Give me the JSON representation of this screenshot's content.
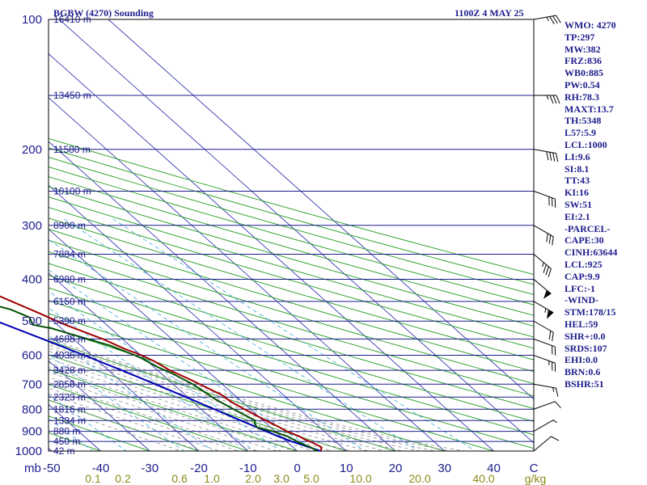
{
  "header": {
    "station": "BGBW (4270) Sounding",
    "time": "1100Z  4 MAY 25"
  },
  "axis": {
    "pressure_unit": "mb",
    "mixing_unit": "g/kg",
    "pressure_labels": [
      "100",
      "200",
      "300",
      "400",
      "500",
      "600",
      "700",
      "800",
      "900",
      "1000"
    ],
    "temp_labels": [
      "-50",
      "-40",
      "-30",
      "-20",
      "-10",
      "0",
      "10",
      "20",
      "30",
      "40",
      "C"
    ],
    "mixing_labels": [
      "0.1",
      "0.2",
      "0.6",
      "1.0",
      "2.0",
      "3.0",
      "5.0",
      "10.0",
      "20.0",
      "40.0"
    ]
  },
  "indices": [
    "WMO: 4270",
    "TP:297",
    "MW:382",
    "FRZ:836",
    "WB0:885",
    "PW:0.54",
    "RH:78.3",
    "MAXT:13.7",
    "TH:5348",
    "L57:5.9",
    "LCL:1000",
    "LI:9.6",
    "SI:8.1",
    "TT:43",
    "KI:16",
    "SW:51",
    "EI:2.1",
    "-PARCEL-",
    "CAPE:30",
    "CINH:63644",
    "LCL:925",
    "CAP:9.9",
    "LFC:-1",
    "-WIND-",
    "STM:178/15",
    "HEL:59",
    "SHR+:0.0",
    "SRDS:107",
    "EHI:0.0",
    "BRN:0.6",
    "BSHR:51"
  ],
  "chart_data": {
    "type": "skew-t log-p sounding",
    "title": "BGBW (4270) Sounding",
    "subtitle": "1100Z  4 MAY 25",
    "pressure_axis": {
      "unit": "mb",
      "range": [
        100,
        1000
      ],
      "scale": "log",
      "ticks": [
        100,
        200,
        300,
        400,
        500,
        600,
        700,
        800,
        900,
        1000
      ]
    },
    "temperature_axis": {
      "unit": "C",
      "range": [
        -50,
        50
      ],
      "ticks": [
        -50,
        -40,
        -30,
        -20,
        -10,
        0,
        10,
        20,
        30,
        40
      ]
    },
    "mixing_ratio_axis": {
      "unit": "g/kg",
      "ticks": [
        0.1,
        0.2,
        0.6,
        1.0,
        2.0,
        3.0,
        5.0,
        10.0,
        20.0,
        40.0
      ]
    },
    "height_levels": [
      {
        "height_m": "16410 m",
        "p": 100
      },
      {
        "height_m": "13450 m",
        "p": 150
      },
      {
        "height_m": "11580 m",
        "p": 200
      },
      {
        "height_m": "10100 m",
        "p": 250
      },
      {
        "height_m": "8900 m",
        "p": 300
      },
      {
        "height_m": "7884 m",
        "p": 350
      },
      {
        "height_m": "6980 m",
        "p": 400
      },
      {
        "height_m": "6150 m",
        "p": 450
      },
      {
        "height_m": "5390 m",
        "p": 500
      },
      {
        "height_m": "4688 m",
        "p": 550
      },
      {
        "height_m": "4036 m",
        "p": 600
      },
      {
        "height_m": "3428 m",
        "p": 650
      },
      {
        "height_m": "2858 m",
        "p": 700
      },
      {
        "height_m": "2323 m",
        "p": 750
      },
      {
        "height_m": "1816 m",
        "p": 800
      },
      {
        "height_m": "1334 m",
        "p": 850
      },
      {
        "height_m": "880 m",
        "p": 900
      },
      {
        "height_m": "450 m",
        "p": 950
      },
      {
        "height_m": "42 m",
        "p": 1000
      }
    ],
    "temperature": [
      {
        "p": 1000,
        "t": 4.8
      },
      {
        "p": 980,
        "t": 5.8
      },
      {
        "p": 960,
        "t": 5.2
      },
      {
        "p": 940,
        "t": 4.2
      },
      {
        "p": 925,
        "t": 3.8
      },
      {
        "p": 900,
        "t": 2.4
      },
      {
        "p": 880,
        "t": 1.8
      },
      {
        "p": 850,
        "t": 0.6
      },
      {
        "p": 800,
        "t": -1.2
      },
      {
        "p": 770,
        "t": -2.2
      },
      {
        "p": 740,
        "t": -2.6
      },
      {
        "p": 700,
        "t": -4.6
      },
      {
        "p": 680,
        "t": -5.6
      },
      {
        "p": 650,
        "t": -7.5
      },
      {
        "p": 620,
        "t": -8.6
      },
      {
        "p": 600,
        "t": -9.8
      },
      {
        "p": 580,
        "t": -11.8
      },
      {
        "p": 550,
        "t": -14.0
      },
      {
        "p": 510,
        "t": -18.4
      },
      {
        "p": 500,
        "t": -19.3
      },
      {
        "p": 480,
        "t": -21.0
      },
      {
        "p": 450,
        "t": -24.0
      },
      {
        "p": 430,
        "t": -26.0
      },
      {
        "p": 400,
        "t": -28.6
      },
      {
        "p": 370,
        "t": -32.0
      },
      {
        "p": 350,
        "t": -34.5
      },
      {
        "p": 320,
        "t": -39.0
      },
      {
        "p": 300,
        "t": -42.5
      },
      {
        "p": 280,
        "t": -44.0
      },
      {
        "p": 260,
        "t": -45.0
      },
      {
        "p": 240,
        "t": -46.0
      },
      {
        "p": 220,
        "t": -47.2
      },
      {
        "p": 200,
        "t": -47.9
      },
      {
        "p": 180,
        "t": -49.0
      },
      {
        "p": 170,
        "t": -49.6
      },
      {
        "p": 155,
        "t": -51.0
      },
      {
        "p": 140,
        "t": -51.5
      },
      {
        "p": 130,
        "t": -52.0
      },
      {
        "p": 120,
        "t": -53.0
      },
      {
        "p": 110,
        "t": -56.5
      },
      {
        "p": 100,
        "t": -59.5
      }
    ],
    "dewpoint": [
      {
        "p": 1000,
        "td": 4.2
      },
      {
        "p": 980,
        "td": 3.6
      },
      {
        "p": 960,
        "td": 2.5
      },
      {
        "p": 925,
        "td": 1.4
      },
      {
        "p": 900,
        "td": -0.5
      },
      {
        "p": 880,
        "td": -2.8
      },
      {
        "p": 860,
        "td": -2.2
      },
      {
        "p": 850,
        "td": -1.6
      },
      {
        "p": 800,
        "td": -3.4
      },
      {
        "p": 760,
        "td": -4.8
      },
      {
        "p": 730,
        "td": -5.4
      },
      {
        "p": 700,
        "td": -6.0
      },
      {
        "p": 660,
        "td": -7.8
      },
      {
        "p": 640,
        "td": -9.2
      },
      {
        "p": 610,
        "td": -10.5
      },
      {
        "p": 600,
        "td": -11.2
      },
      {
        "p": 570,
        "td": -14.0
      },
      {
        "p": 540,
        "td": -18.7
      },
      {
        "p": 520,
        "td": -22.0
      },
      {
        "p": 510,
        "td": -25.0
      },
      {
        "p": 490,
        "td": -24.0
      },
      {
        "p": 470,
        "td": -26.0
      },
      {
        "p": 450,
        "td": -30.5
      },
      {
        "p": 420,
        "td": -32.0
      },
      {
        "p": 400,
        "td": -35.5
      },
      {
        "p": 380,
        "td": -38.5
      },
      {
        "p": 350,
        "td": -44.0
      },
      {
        "p": 330,
        "td": -48.0
      },
      {
        "p": 300,
        "td": -53.0
      },
      {
        "p": 290,
        "td": -54.0
      },
      {
        "p": 270,
        "td": -54.5
      },
      {
        "p": 255,
        "td": -55.0
      },
      {
        "p": 240,
        "td": -57.0
      },
      {
        "p": 210,
        "td": -58.5
      },
      {
        "p": 195,
        "td": -59.0
      },
      {
        "p": 170,
        "td": -65.0
      },
      {
        "p": 160,
        "td": -70.0
      },
      {
        "p": 150,
        "td": -72.0
      },
      {
        "p": 140,
        "td": -74.5
      },
      {
        "p": 130,
        "td": -72.0
      },
      {
        "p": 120,
        "td": -73.5
      },
      {
        "p": 110,
        "td": -74.0
      },
      {
        "p": 100,
        "td": -74.5
      }
    ],
    "parcel_path": [
      {
        "p": 1000,
        "t": 4.8
      },
      {
        "p": 950,
        "t": 1.0
      },
      {
        "p": 925,
        "t": -0.5
      },
      {
        "p": 900,
        "t": -1.8
      },
      {
        "p": 850,
        "t": -4.5
      },
      {
        "p": 800,
        "t": -7.3
      },
      {
        "p": 750,
        "t": -10.3
      },
      {
        "p": 700,
        "t": -13.6
      },
      {
        "p": 650,
        "t": -17.3
      },
      {
        "p": 600,
        "t": -21.5
      },
      {
        "p": 550,
        "t": -26.2
      },
      {
        "p": 500,
        "t": -31.6
      },
      {
        "p": 450,
        "t": -37.6
      },
      {
        "p": 400,
        "t": -44.5
      },
      {
        "p": 350,
        "t": -52.0
      },
      {
        "p": 300,
        "t": -60.4
      },
      {
        "p": 250,
        "t": -70.0
      },
      {
        "p": 200,
        "t": -81.0
      },
      {
        "p": 150,
        "t": -94.0
      },
      {
        "p": 100,
        "t": -111.0
      }
    ],
    "wind_barbs": [
      {
        "p": 1000,
        "dir": 230,
        "spd": 10
      },
      {
        "p": 900,
        "dir": 240,
        "spd": 5
      },
      {
        "p": 800,
        "dir": 250,
        "spd": 10
      },
      {
        "p": 700,
        "dir": 280,
        "spd": 15
      },
      {
        "p": 600,
        "dir": 290,
        "spd": 25
      },
      {
        "p": 550,
        "dir": 290,
        "spd": 20
      },
      {
        "p": 500,
        "dir": 300,
        "spd": 20
      },
      {
        "p": 450,
        "dir": 300,
        "spd": 65
      },
      {
        "p": 400,
        "dir": 310,
        "spd": 60
      },
      {
        "p": 350,
        "dir": 310,
        "spd": 35
      },
      {
        "p": 300,
        "dir": 300,
        "spd": 30
      },
      {
        "p": 250,
        "dir": 290,
        "spd": 30
      },
      {
        "p": 200,
        "dir": 280,
        "spd": 40
      },
      {
        "p": 150,
        "dir": 270,
        "spd": 35
      },
      {
        "p": 100,
        "dir": 260,
        "spd": 35
      }
    ],
    "colors": {
      "frame": "#000000",
      "isobar": "#1c1c8c",
      "isotherm": "#3a3ab4",
      "dry_adiabat": "#1e9b1e",
      "moist_adiabat": "#8c8c8c",
      "mixing_ratio": "#38a8d8",
      "temperature": "#a00000",
      "dewpoint": "#005000",
      "parcel": "#0000b4",
      "text": "#1c1c8c"
    }
  }
}
